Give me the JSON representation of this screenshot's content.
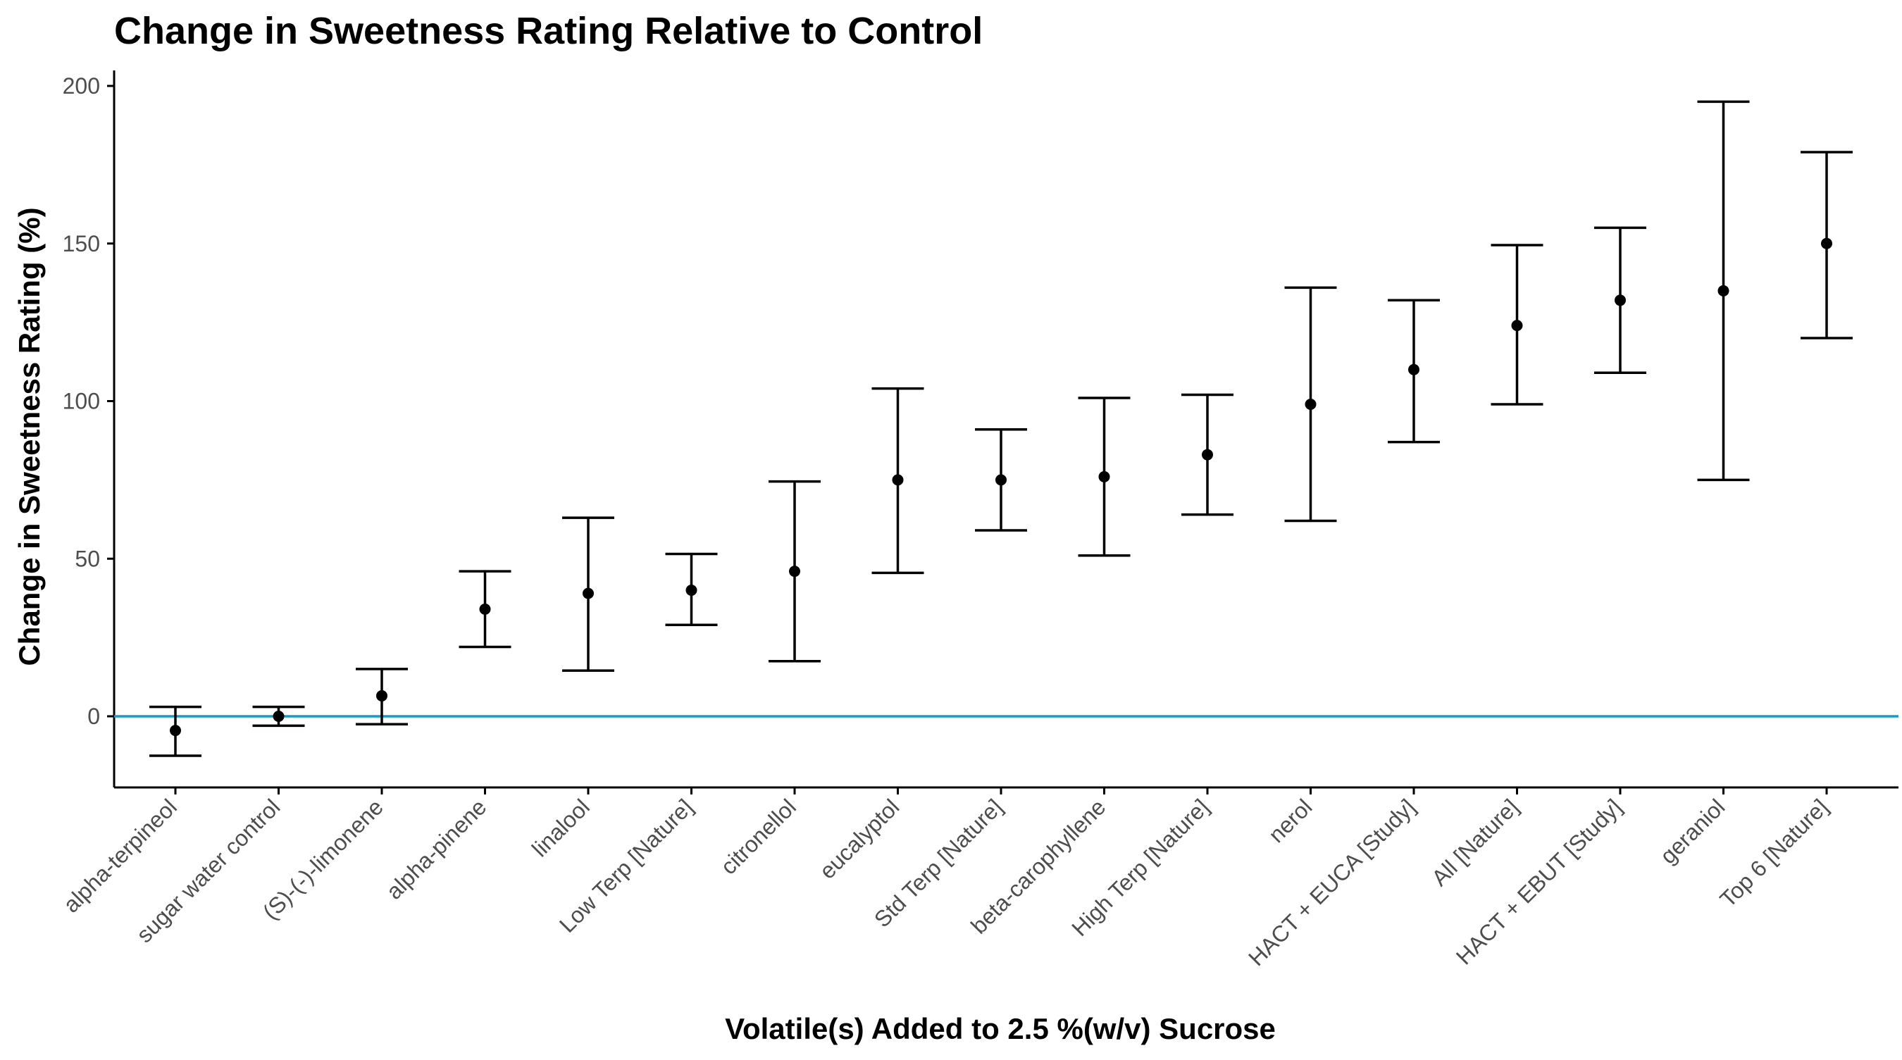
{
  "chart_data": {
    "type": "scatter",
    "title": "Change in Sweetness Rating Relative to Control",
    "xlabel": "Volatile(s) Added to 2.5 %(w/v) Sucrose",
    "ylabel": "Change in Sweetness Rating (%)",
    "ylim": [
      -23,
      202
    ],
    "yticks": [
      0,
      50,
      100,
      150,
      200
    ],
    "grid": false,
    "reference_line": {
      "y": 0,
      "color": "#1a9bc4"
    },
    "categories": [
      "alpha-terpineol",
      "sugar water control",
      "(S)-(-)-limonene",
      "alpha-pinene",
      "linalool",
      "Low Terp [Nature]",
      "citronellol",
      "eucalyptol",
      "Std Terp [Nature]",
      "beta-carophyllene",
      "High Terp [Nature]",
      "nerol",
      "HACT + EUCA [Study]",
      "All [Nature]",
      "HACT + EBUT [Study]",
      "geraniol",
      "Top 6 [Nature]"
    ],
    "series": [
      {
        "values": [
          -4.5,
          0,
          6.5,
          34,
          39,
          40,
          46,
          75,
          75,
          76,
          83,
          99,
          110,
          124,
          132,
          135,
          150
        ],
        "lower": [
          -12.5,
          -3,
          -2.5,
          22,
          14.5,
          29,
          17.5,
          45.5,
          59,
          51,
          64,
          62,
          87,
          99,
          109,
          75,
          120
        ],
        "upper": [
          3,
          3,
          15,
          46,
          63,
          51.5,
          74.5,
          104,
          91,
          101,
          102,
          136,
          132,
          149.5,
          155,
          195,
          179
        ]
      }
    ]
  }
}
